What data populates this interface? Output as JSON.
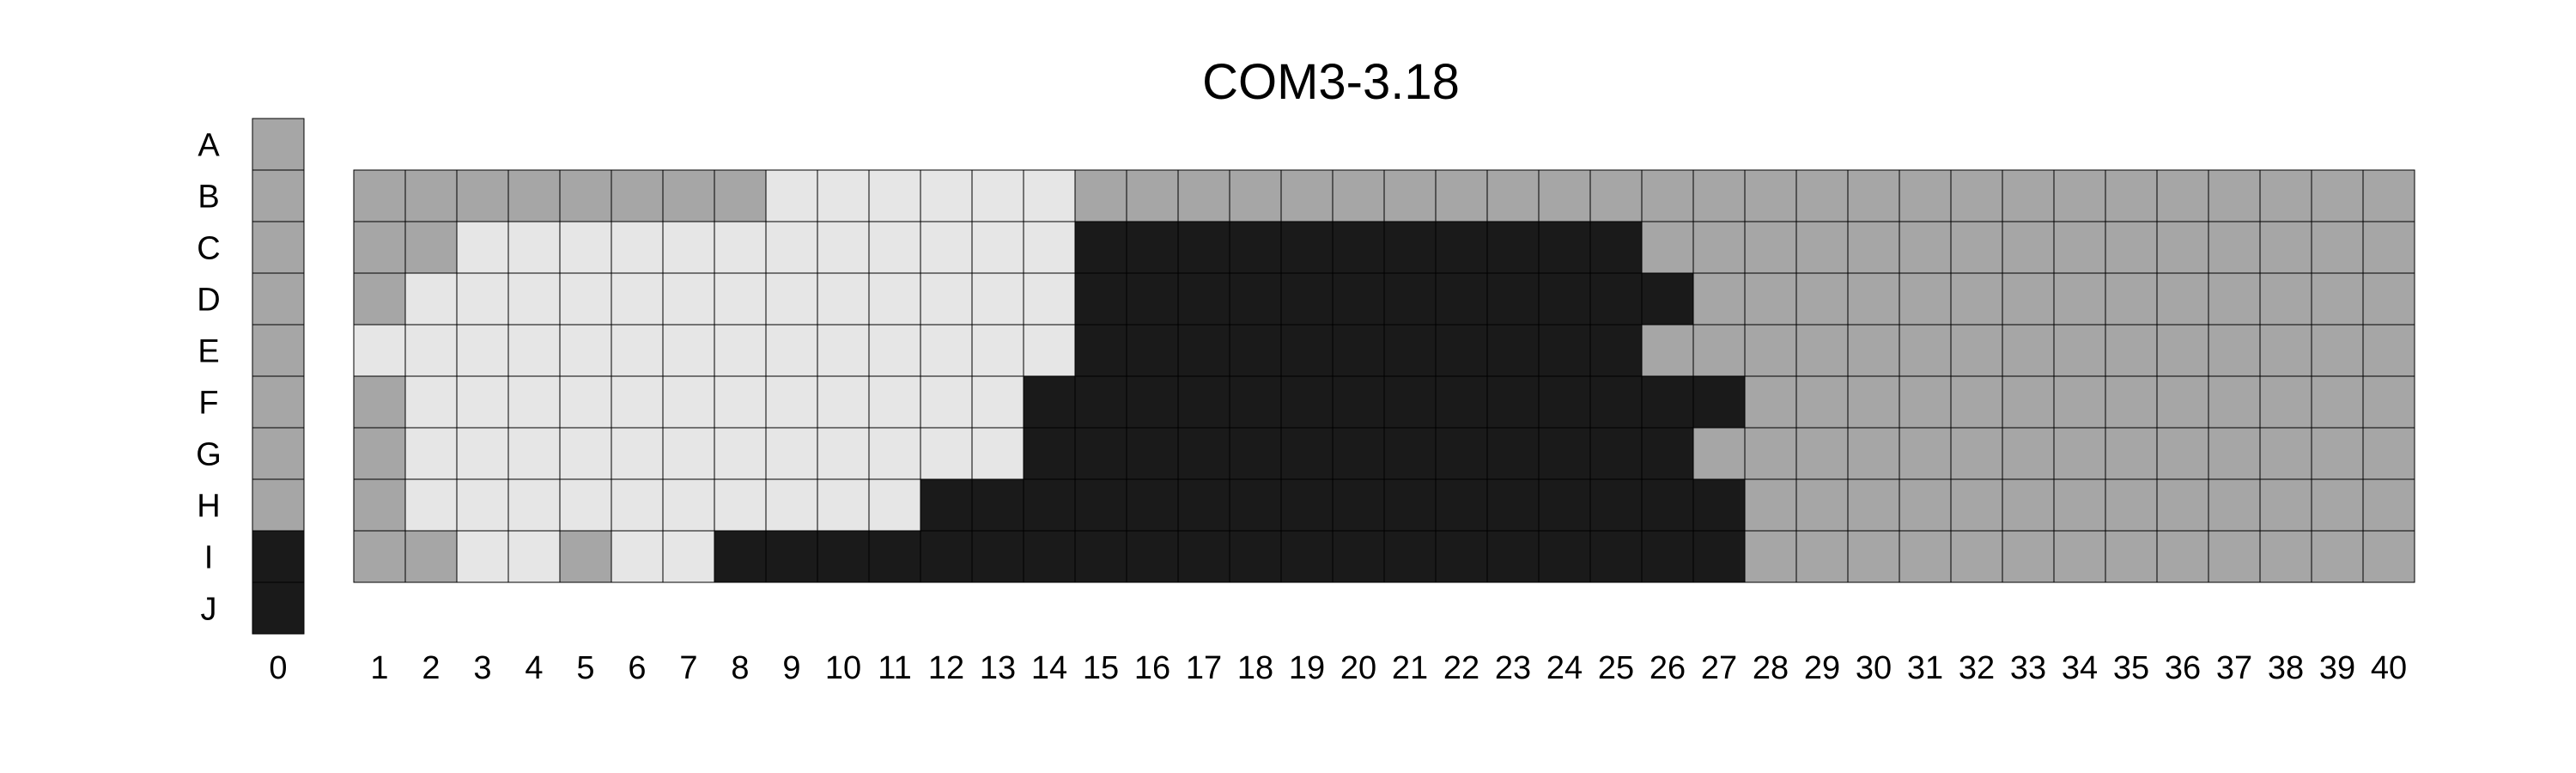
{
  "chart_data": {
    "type": "heatmap",
    "title": "COM3-3.18",
    "row_labels": [
      "A",
      "B",
      "C",
      "D",
      "E",
      "F",
      "G",
      "H",
      "I",
      "J"
    ],
    "column_labels": [
      "0",
      "1",
      "2",
      "3",
      "4",
      "5",
      "6",
      "7",
      "8",
      "9",
      "10",
      "11",
      "12",
      "13",
      "14",
      "15",
      "16",
      "17",
      "18",
      "19",
      "20",
      "21",
      "22",
      "23",
      "24",
      "25",
      "26",
      "27",
      "28",
      "29",
      "30",
      "31",
      "32",
      "33",
      "34",
      "35",
      "36",
      "37",
      "38",
      "39",
      "40"
    ],
    "colors": {
      "light": "#e6e6e6",
      "mid": "#a6a6a6",
      "dark": "#1a1a1a"
    },
    "reference_column": {
      "label": "0",
      "cells": [
        "mid",
        "mid",
        "mid",
        "mid",
        "mid",
        "mid",
        "mid",
        "mid",
        "dark",
        "dark"
      ]
    },
    "grid": {
      "first_row": "B",
      "rows": [
        "MMMMMMMMLLLLLLMMMMMMMMMMMMMMMMMMMMMMMMMM",
        "MMLLLLLLLLLLLLDDDDDDDDDDDMMMMMMMMMMMMMMM",
        "MLLLLLLLLLLLLLDDDDDDDDDDDDMMMMMMMMMMMMMM",
        "LLLLLLLLLLLLLLDDDDDDDDDDDMMMMMMMMMMMMMMM",
        "MLLLLLLLLLLLLDDDDDDDDDDDDDDMMMMMMMMMMMMM",
        "MLLLLLLLLLLLLDDDDDDDDDDDDDMMMMMMMMMMMMMM",
        "MLLLLLLLLLLDDDDDDDDDDDDDDDDMMMMMMMMMMMMM",
        "MMLLMLLDDDDDDDDDDDDDDDDDDDDMMMMMMMMMMMMM"
      ],
      "legend": {
        "L": "light",
        "M": "mid",
        "D": "dark"
      }
    }
  }
}
